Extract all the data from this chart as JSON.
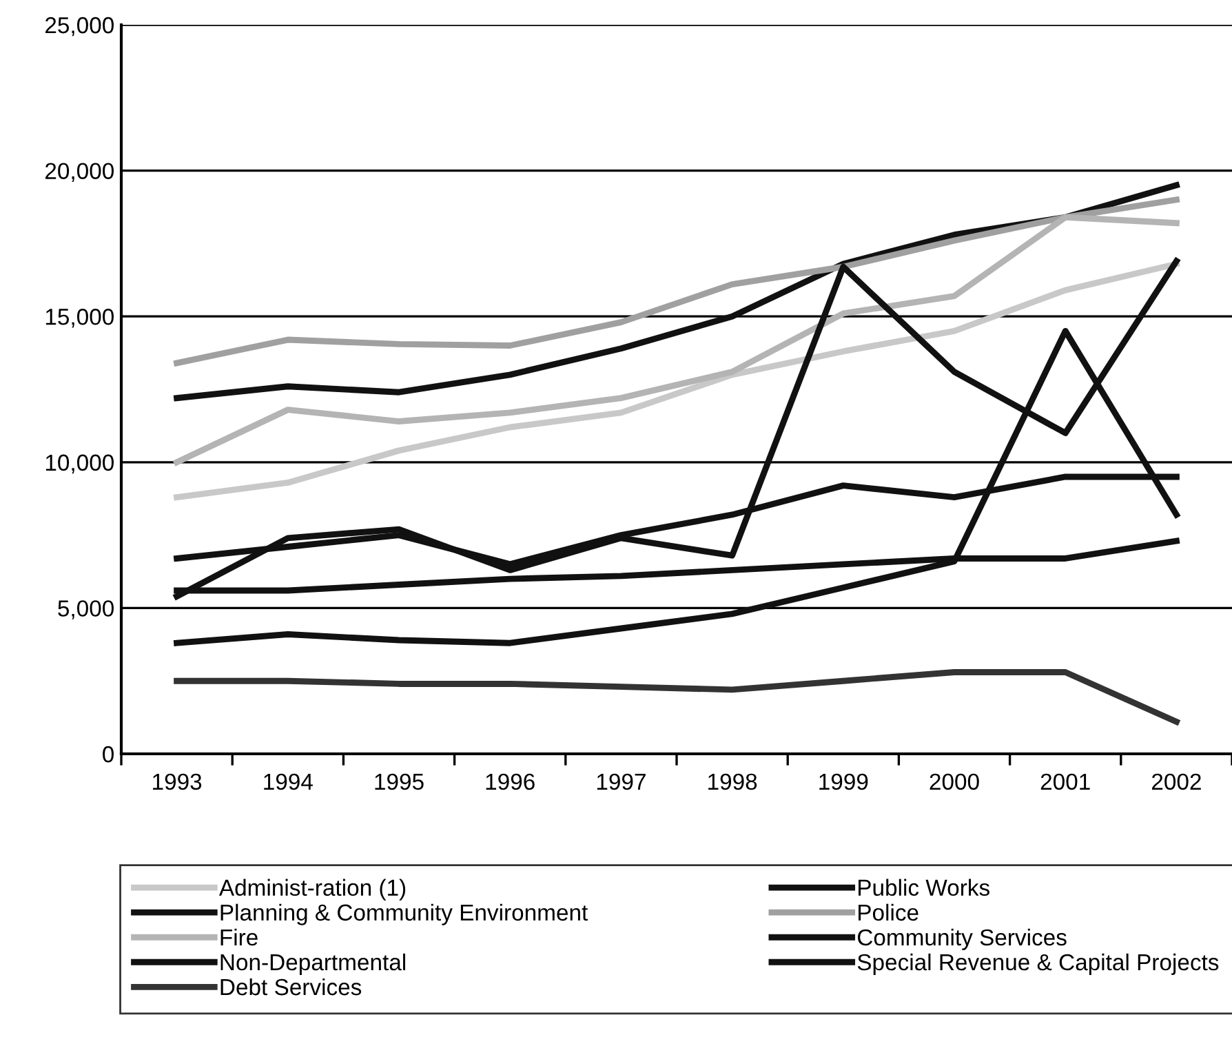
{
  "chart_data": {
    "type": "line",
    "categories": [
      "1993",
      "1994",
      "1995",
      "1996",
      "1997",
      "1998",
      "1999",
      "2000",
      "2001",
      "2002"
    ],
    "series": [
      {
        "name": "Administ-ration (1)",
        "color": "#c8c8c8",
        "values": [
          8800,
          9300,
          10400,
          11200,
          11700,
          13000,
          13800,
          14500,
          15900,
          16800
        ]
      },
      {
        "name": "Public Works",
        "color": "#111111",
        "values": [
          12200,
          12600,
          12400,
          13000,
          13900,
          15000,
          16800,
          17800,
          18400,
          19500
        ]
      },
      {
        "name": "Planning & Community Environment",
        "color": "#111111",
        "values": [
          5600,
          5600,
          5800,
          6000,
          6100,
          6300,
          6500,
          6700,
          6700,
          7300
        ]
      },
      {
        "name": "Police",
        "color": "#a0a0a0",
        "values": [
          13400,
          14200,
          14050,
          14000,
          14800,
          16100,
          16700,
          17600,
          18400,
          19000
        ]
      },
      {
        "name": "Fire",
        "color": "#b4b4b4",
        "values": [
          10000,
          11800,
          11400,
          11700,
          12200,
          13100,
          15100,
          15700,
          18400,
          18200
        ]
      },
      {
        "name": "Community Services",
        "color": "#111111",
        "values": [
          6700,
          7100,
          7500,
          6500,
          7500,
          8200,
          9200,
          8800,
          9500,
          9500
        ]
      },
      {
        "name": "Non-Departmental",
        "color": "#111111",
        "values": [
          3800,
          4100,
          3900,
          3800,
          4300,
          4800,
          5700,
          6600,
          14500,
          8200
        ]
      },
      {
        "name": "Special Revenue & Capital Projects",
        "color": "#111111",
        "values": [
          5400,
          7400,
          7700,
          6300,
          7400,
          6800,
          16700,
          13100,
          11000,
          16900
        ]
      },
      {
        "name": "Debt Services",
        "color": "#333333",
        "values": [
          2500,
          2500,
          2400,
          2400,
          2300,
          2200,
          2500,
          2800,
          2800,
          1100
        ]
      }
    ],
    "ylim": [
      0,
      25000
    ],
    "yticks": [
      {
        "value": 0,
        "label": "0"
      },
      {
        "value": 5000,
        "label": "5,000"
      },
      {
        "value": 10000,
        "label": "10,000"
      },
      {
        "value": 15000,
        "label": "15,000"
      },
      {
        "value": 20000,
        "label": "20,000"
      },
      {
        "value": 25000,
        "label": "25,000"
      }
    ],
    "grid": "y",
    "legend": "bottom",
    "marker": "none",
    "line_style": "solid"
  }
}
